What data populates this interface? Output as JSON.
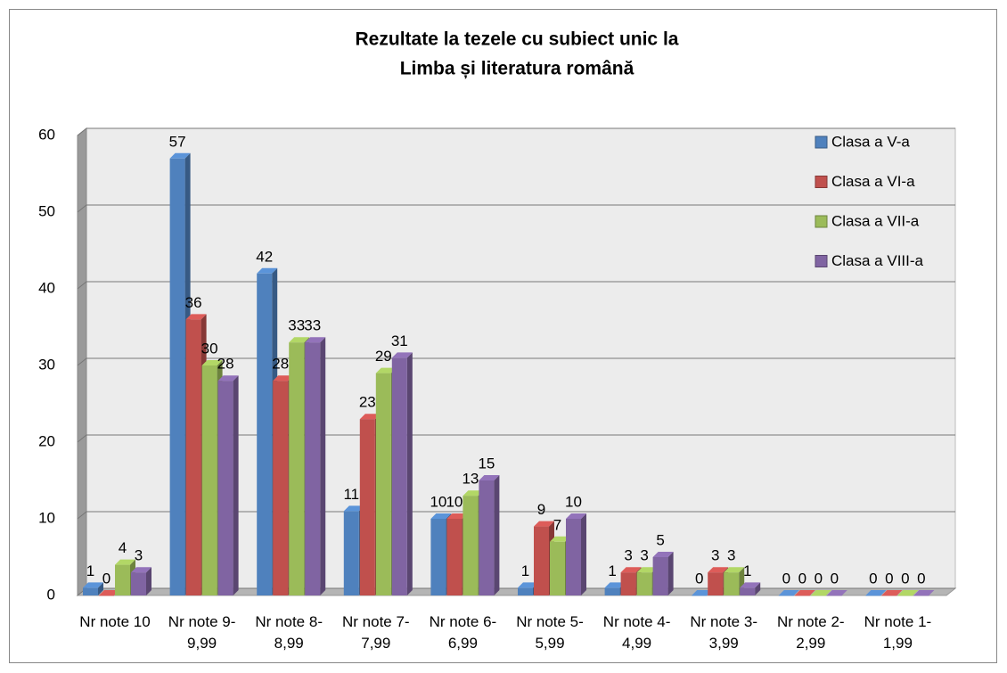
{
  "chart_data": {
    "type": "bar3d",
    "title": [
      "Rezultate la tezele cu subiect unic la",
      "Limba și literatura română"
    ],
    "categories": [
      "Nr note 10",
      "Nr note 9-9,99",
      "Nr note 8-8,99",
      "Nr note 7-7,99",
      "Nr note 6-6,99",
      "Nr note 5-5,99",
      "Nr note 4-4,99",
      "Nr note 3-3,99",
      "Nr note 2-2,99",
      "Nr note 1-1,99"
    ],
    "series": [
      {
        "name": "Clasa a V-a",
        "color": "#4f81bd",
        "values": [
          1,
          57,
          42,
          11,
          10,
          1,
          1,
          0,
          0,
          0
        ]
      },
      {
        "name": "Clasa a VI-a",
        "color": "#c0504d",
        "values": [
          0,
          36,
          28,
          23,
          10,
          9,
          3,
          3,
          0,
          0
        ]
      },
      {
        "name": "Clasa a VII-a",
        "color": "#9bbb59",
        "values": [
          4,
          30,
          33,
          29,
          13,
          7,
          3,
          3,
          0,
          0
        ]
      },
      {
        "name": "Clasa a VIII-a",
        "color": "#8064a2",
        "values": [
          3,
          28,
          33,
          31,
          15,
          10,
          5,
          1,
          0,
          0
        ]
      }
    ],
    "ylim": [
      0,
      60
    ],
    "yticks": [
      0,
      10,
      20,
      30,
      40,
      50,
      60
    ],
    "grid": true,
    "legend": "top-right"
  }
}
